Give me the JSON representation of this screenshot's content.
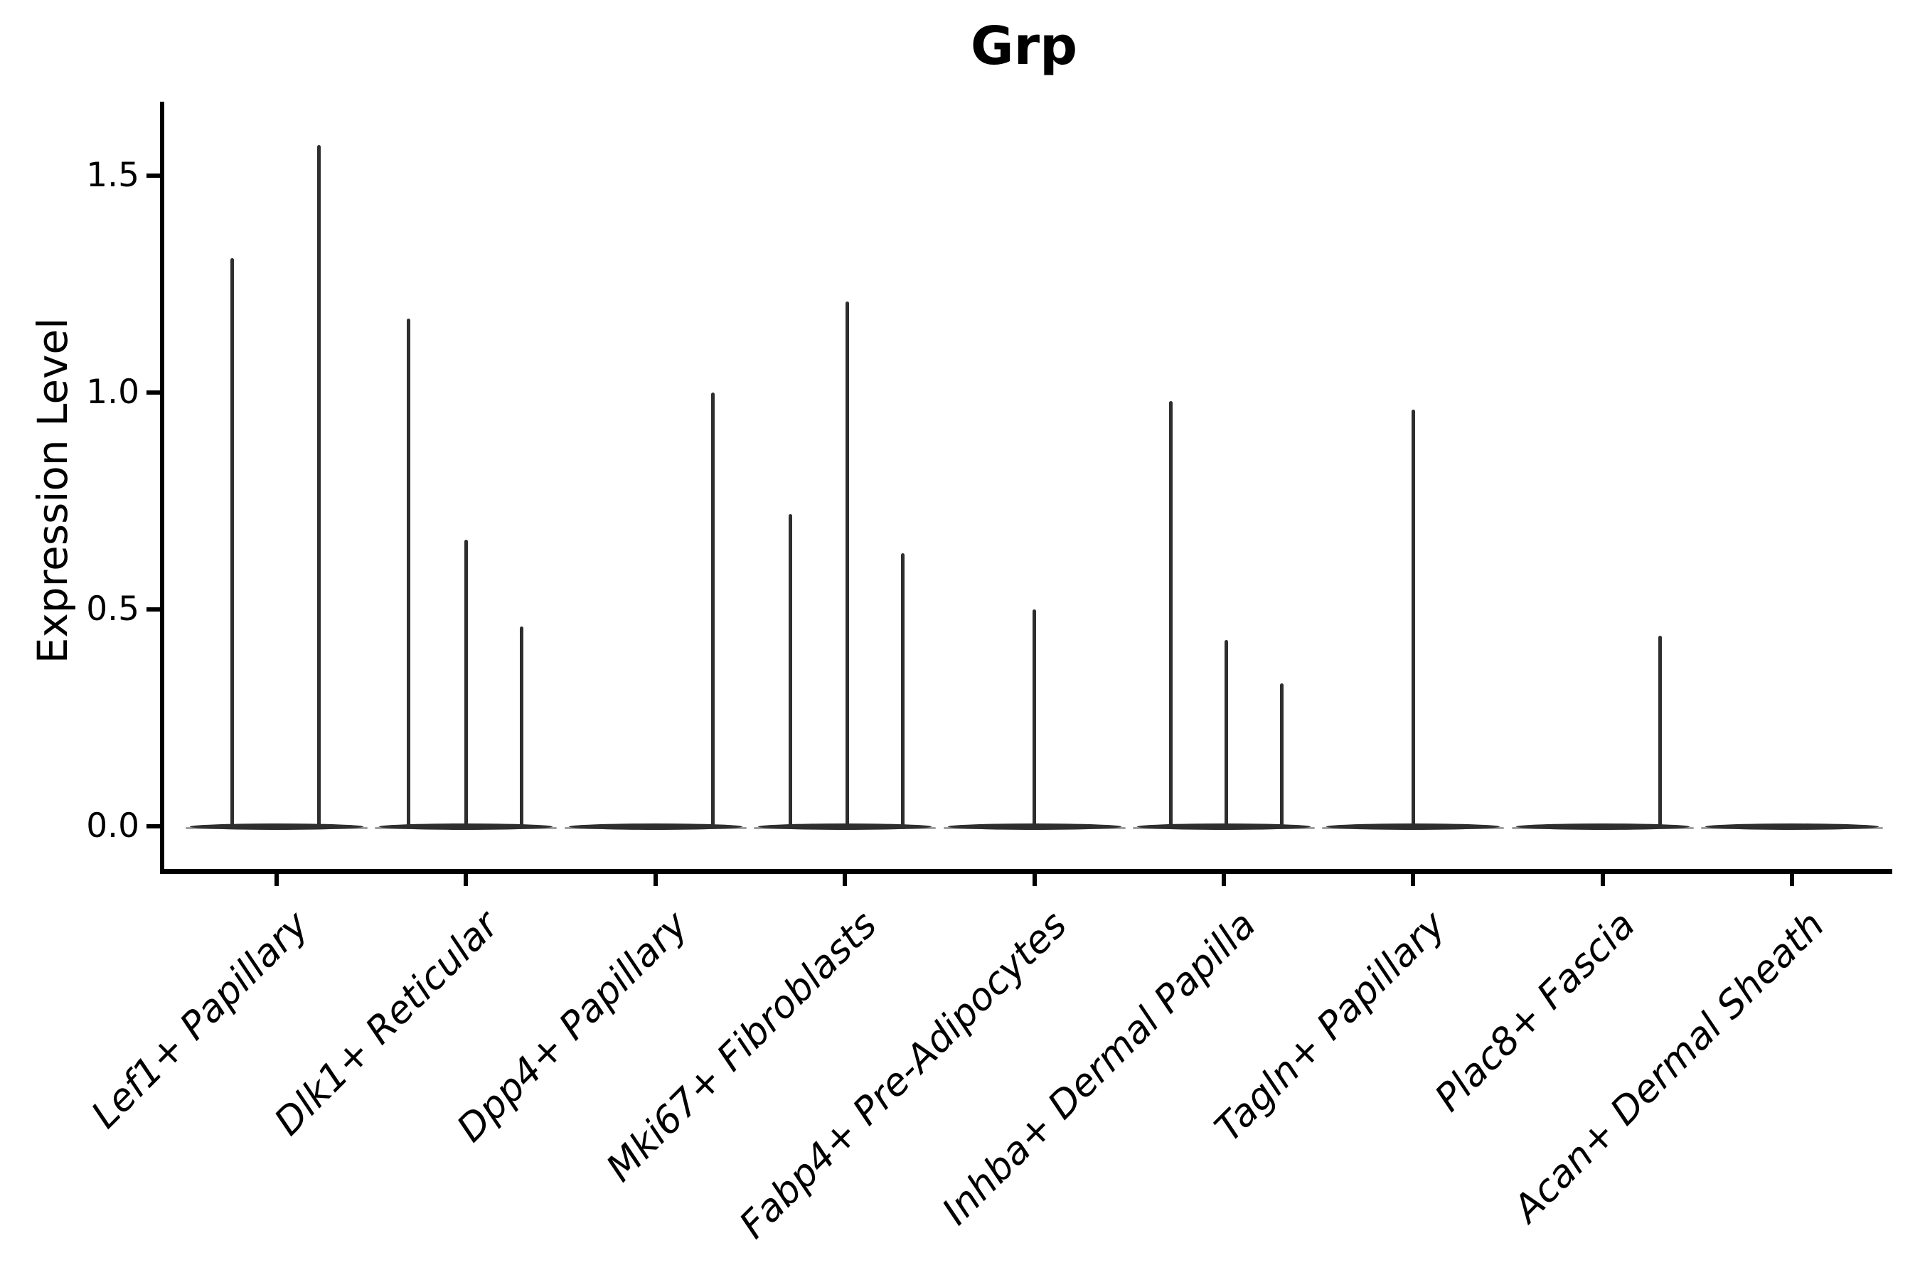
{
  "chart_data": {
    "type": "violin",
    "title": "Grp",
    "xlabel": "",
    "ylabel": "Expression Level",
    "legend": "none",
    "grid": false,
    "background_color": "#ffffff",
    "axis_color": "#000000",
    "violin_color": "#2e2e2e",
    "ylim": [
      -0.1,
      1.67
    ],
    "yticks": [
      {
        "label": "0.0",
        "value": 0.0
      },
      {
        "label": "0.5",
        "value": 0.5
      },
      {
        "label": "1.0",
        "value": 1.0
      },
      {
        "label": "1.5",
        "value": 1.5
      }
    ],
    "x_label_rotation_deg": 45,
    "description": "Violin plot of Grp expression; each cell-type group shows a flat density mass at 0 with thin spikes rising to the maximum expressed values.",
    "categories": [
      {
        "label": "Lef1+ Papillary",
        "spikes": [
          {
            "offset": -63,
            "value": 1.31
          },
          {
            "offset": 59,
            "value": 1.57
          }
        ]
      },
      {
        "label": "Dlk1+ Reticular",
        "spikes": [
          {
            "offset": -81,
            "value": 1.17
          },
          {
            "offset": 0,
            "value": 0.66
          },
          {
            "offset": 78,
            "value": 0.46
          }
        ]
      },
      {
        "label": "Dpp4+ Papillary",
        "spikes": [
          {
            "offset": 81,
            "value": 1.0
          }
        ]
      },
      {
        "label": "Mki67+ Fibroblasts",
        "spikes": [
          {
            "offset": -77,
            "value": 0.72
          },
          {
            "offset": 3,
            "value": 1.21
          },
          {
            "offset": 81,
            "value": 0.63
          }
        ]
      },
      {
        "label": "Fabp4+ Pre-Adipocytes",
        "spikes": [
          {
            "offset": 0,
            "value": 0.5
          }
        ]
      },
      {
        "label": "Inhba+ Dermal Papilla",
        "spikes": [
          {
            "offset": -75,
            "value": 0.98
          },
          {
            "offset": 3,
            "value": 0.43
          },
          {
            "offset": 81,
            "value": 0.33
          }
        ]
      },
      {
        "label": "Tagln+ Papillary",
        "spikes": [
          {
            "offset": 0,
            "value": 0.96
          }
        ]
      },
      {
        "label": "Plac8+ Fascia",
        "spikes": [
          {
            "offset": 81,
            "value": 0.44
          }
        ]
      },
      {
        "label": "Acan+ Dermal Sheath",
        "spikes": []
      }
    ],
    "baseline_value": 0.0
  }
}
